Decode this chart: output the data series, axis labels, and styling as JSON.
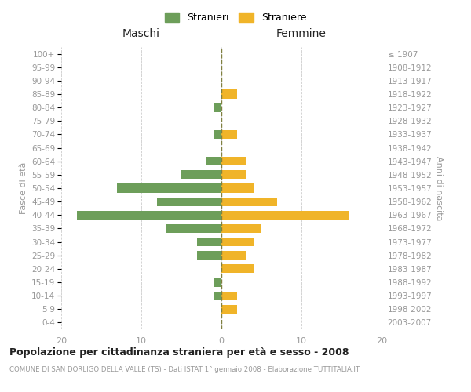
{
  "age_groups": [
    "100+",
    "95-99",
    "90-94",
    "85-89",
    "80-84",
    "75-79",
    "70-74",
    "65-69",
    "60-64",
    "55-59",
    "50-54",
    "45-49",
    "40-44",
    "35-39",
    "30-34",
    "25-29",
    "20-24",
    "15-19",
    "10-14",
    "5-9",
    "0-4"
  ],
  "birth_years": [
    "≤ 1907",
    "1908-1912",
    "1913-1917",
    "1918-1922",
    "1923-1927",
    "1928-1932",
    "1933-1937",
    "1938-1942",
    "1943-1947",
    "1948-1952",
    "1953-1957",
    "1958-1962",
    "1963-1967",
    "1968-1972",
    "1973-1977",
    "1978-1982",
    "1983-1987",
    "1988-1992",
    "1993-1997",
    "1998-2002",
    "2003-2007"
  ],
  "maschi": [
    0,
    0,
    0,
    0,
    1,
    0,
    1,
    0,
    2,
    5,
    13,
    8,
    18,
    7,
    3,
    3,
    0,
    1,
    1,
    0,
    0
  ],
  "femmine": [
    0,
    0,
    0,
    2,
    0,
    0,
    2,
    0,
    3,
    3,
    4,
    7,
    16,
    5,
    4,
    3,
    4,
    0,
    2,
    2,
    0
  ],
  "maschi_color": "#6d9e5a",
  "femmine_color": "#f0b429",
  "title": "Popolazione per cittadinanza straniera per età e sesso - 2008",
  "subtitle": "COMUNE DI SAN DORLIGO DELLA VALLE (TS) - Dati ISTAT 1° gennaio 2008 - Elaborazione TUTTITALIA.IT",
  "ylabel_left": "Fasce di età",
  "ylabel_right": "Anni di nascita",
  "header_left": "Maschi",
  "header_right": "Femmine",
  "legend_maschi": "Stranieri",
  "legend_femmine": "Straniere",
  "xlim": 20,
  "background_color": "#ffffff",
  "grid_color": "#cccccc",
  "label_color": "#999999",
  "title_color": "#222222",
  "subtitle_color": "#999999",
  "centerline_color": "#808040"
}
